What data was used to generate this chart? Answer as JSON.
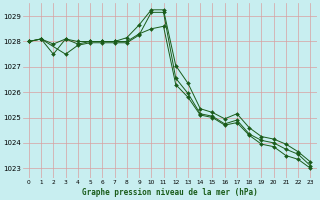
{
  "title": "Graphe pression niveau de la mer (hPa)",
  "background_color": "#c8eef0",
  "grid_color_v": "#d9b0b0",
  "grid_color_h": "#d9b0b0",
  "line_color": "#1a5c1a",
  "marker_color": "#1a5c1a",
  "xlim": [
    -0.5,
    23.5
  ],
  "ylim": [
    1022.6,
    1029.5
  ],
  "yticks": [
    1023,
    1024,
    1025,
    1026,
    1027,
    1028,
    1029
  ],
  "xticks": [
    0,
    1,
    2,
    3,
    4,
    5,
    6,
    7,
    8,
    9,
    10,
    11,
    12,
    13,
    14,
    15,
    16,
    17,
    18,
    19,
    20,
    21,
    22,
    23
  ],
  "series1_x": [
    0,
    1,
    2,
    3,
    4,
    5,
    6,
    7,
    8,
    9,
    10,
    11,
    12,
    13,
    14,
    15,
    16,
    17,
    18,
    19,
    20,
    21,
    22,
    23
  ],
  "series1": [
    1028.0,
    1028.1,
    1027.5,
    1028.1,
    1027.9,
    1028.0,
    1028.0,
    1028.0,
    1028.0,
    1028.3,
    1028.5,
    1028.6,
    1026.3,
    1025.8,
    1025.1,
    1025.0,
    1024.7,
    1024.8,
    1024.3,
    1023.95,
    1023.85,
    1023.5,
    1023.35,
    1023.0
  ],
  "series2_x": [
    0,
    1,
    3,
    4,
    5,
    6,
    7,
    8,
    9,
    10,
    11,
    12,
    13,
    14,
    15,
    16,
    17,
    18,
    19,
    20,
    21,
    22,
    23
  ],
  "series2": [
    1028.0,
    1028.1,
    1027.5,
    1027.85,
    1027.95,
    1027.95,
    1027.95,
    1027.95,
    1028.25,
    1029.15,
    1029.15,
    1026.55,
    1025.95,
    1025.15,
    1025.05,
    1024.75,
    1024.9,
    1024.35,
    1024.1,
    1024.0,
    1023.75,
    1023.55,
    1023.1
  ],
  "series3_x": [
    0,
    1,
    2,
    3,
    4,
    5,
    6,
    7,
    8,
    9,
    10,
    11,
    12,
    13,
    14,
    15,
    16,
    17,
    18,
    19,
    20,
    21,
    22,
    23
  ],
  "series3": [
    1028.0,
    1028.1,
    1027.9,
    1028.1,
    1028.0,
    1028.0,
    1028.0,
    1028.0,
    1028.15,
    1028.65,
    1029.25,
    1029.25,
    1027.05,
    1026.35,
    1025.35,
    1025.2,
    1024.95,
    1025.15,
    1024.6,
    1024.25,
    1024.15,
    1023.95,
    1023.65,
    1023.25
  ]
}
